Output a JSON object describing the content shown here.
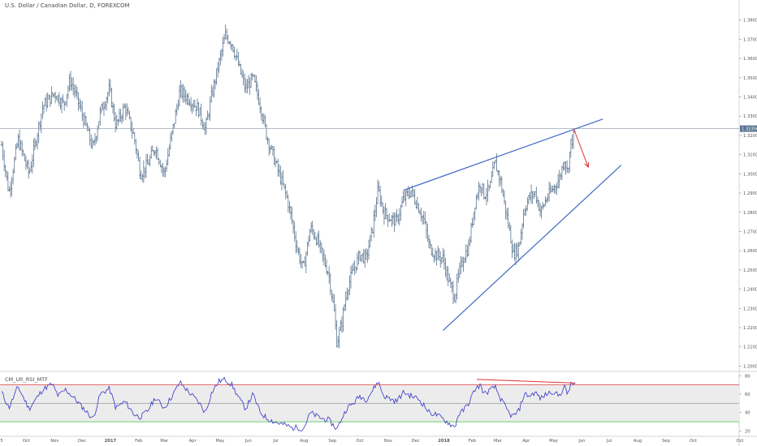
{
  "header": {
    "title": "U.S. Dollar / Canadian Dollar, D, FOREXCOM"
  },
  "indicator": {
    "title": "CM_Ult_RSI_MTF"
  },
  "chart_data": [
    {
      "type": "ohlc",
      "title": "U.S. Dollar / Canadian Dollar, D, FOREXCOM",
      "y_ticks": [
        1.2,
        1.21,
        1.22,
        1.23,
        1.24,
        1.25,
        1.26,
        1.27,
        1.28,
        1.29,
        1.3,
        1.31,
        1.32,
        1.33,
        1.34,
        1.35,
        1.36,
        1.37,
        1.38
      ],
      "y_tick_labels": [
        "1.20000",
        "1.21000",
        "1.22000",
        "1.23000",
        "1.24000",
        "1.25000",
        "1.26000",
        "1.27000",
        "1.28000",
        "1.29000",
        "1.30000",
        "1.31000",
        "1.32000",
        "1.33000",
        "1.34000",
        "1.35000",
        "1.36000",
        "1.37000",
        "1.38000"
      ],
      "ylim": [
        1.1985,
        1.3845
      ],
      "current_price_label": "1.32350",
      "current_price": 1.3235,
      "x_ticks": [
        {
          "label": "5",
          "t": 0
        },
        {
          "label": "Oct",
          "t": 27
        },
        {
          "label": "Nov",
          "t": 58
        },
        {
          "label": "Dec",
          "t": 88
        },
        {
          "label": "2017",
          "t": 119
        },
        {
          "label": "Feb",
          "t": 150
        },
        {
          "label": "Mar",
          "t": 178
        },
        {
          "label": "Apr",
          "t": 209
        },
        {
          "label": "May",
          "t": 239
        },
        {
          "label": "Jun",
          "t": 270
        },
        {
          "label": "Jul",
          "t": 300
        },
        {
          "label": "Aug",
          "t": 331
        },
        {
          "label": "Sep",
          "t": 362
        },
        {
          "label": "Oct",
          "t": 392
        },
        {
          "label": "Nov",
          "t": 423
        },
        {
          "label": "Dec",
          "t": 453
        },
        {
          "label": "2018",
          "t": 484
        },
        {
          "label": "Feb",
          "t": 515
        },
        {
          "label": "Mar",
          "t": 543
        },
        {
          "label": "Apr",
          "t": 574
        },
        {
          "label": "May",
          "t": 604
        },
        {
          "label": "Jun",
          "t": 635
        },
        {
          "label": "Jul",
          "t": 665
        },
        {
          "label": "Aug",
          "t": 696
        },
        {
          "label": "Sep",
          "t": 727
        },
        {
          "label": "Oct",
          "t": 757
        },
        {
          "label": "Oct",
          "t": 808
        }
      ],
      "price_anchors": [
        [
          0,
          1.315
        ],
        [
          8,
          1.29
        ],
        [
          18,
          1.318
        ],
        [
          30,
          1.3
        ],
        [
          45,
          1.335
        ],
        [
          58,
          1.342
        ],
        [
          68,
          1.336
        ],
        [
          75,
          1.349
        ],
        [
          82,
          1.34
        ],
        [
          90,
          1.328
        ],
        [
          100,
          1.313
        ],
        [
          108,
          1.332
        ],
        [
          118,
          1.344
        ],
        [
          125,
          1.325
        ],
        [
          135,
          1.335
        ],
        [
          145,
          1.319
        ],
        [
          152,
          1.3
        ],
        [
          160,
          1.305
        ],
        [
          168,
          1.314
        ],
        [
          178,
          1.3
        ],
        [
          188,
          1.325
        ],
        [
          195,
          1.343
        ],
        [
          205,
          1.339
        ],
        [
          215,
          1.334
        ],
        [
          223,
          1.323
        ],
        [
          230,
          1.341
        ],
        [
          238,
          1.358
        ],
        [
          245,
          1.372
        ],
        [
          252,
          1.368
        ],
        [
          260,
          1.355
        ],
        [
          267,
          1.344
        ],
        [
          275,
          1.35
        ],
        [
          283,
          1.336
        ],
        [
          290,
          1.32
        ],
        [
          298,
          1.308
        ],
        [
          305,
          1.298
        ],
        [
          312,
          1.288
        ],
        [
          318,
          1.275
        ],
        [
          323,
          1.262
        ],
        [
          330,
          1.25
        ],
        [
          338,
          1.272
        ],
        [
          345,
          1.266
        ],
        [
          352,
          1.256
        ],
        [
          358,
          1.248
        ],
        [
          364,
          1.228
        ],
        [
          367,
          1.212
        ],
        [
          372,
          1.222
        ],
        [
          378,
          1.24
        ],
        [
          385,
          1.25
        ],
        [
          392,
          1.258
        ],
        [
          399,
          1.256
        ],
        [
          406,
          1.272
        ],
        [
          412,
          1.292
        ],
        [
          418,
          1.28
        ],
        [
          425,
          1.277
        ],
        [
          432,
          1.275
        ],
        [
          440,
          1.287
        ],
        [
          448,
          1.291
        ],
        [
          456,
          1.283
        ],
        [
          462,
          1.276
        ],
        [
          468,
          1.262
        ],
        [
          475,
          1.258
        ],
        [
          483,
          1.256
        ],
        [
          490,
          1.243
        ],
        [
          496,
          1.236
        ],
        [
          500,
          1.247
        ],
        [
          505,
          1.256
        ],
        [
          511,
          1.262
        ],
        [
          518,
          1.285
        ],
        [
          524,
          1.296
        ],
        [
          528,
          1.289
        ],
        [
          534,
          1.292
        ],
        [
          540,
          1.306
        ],
        [
          546,
          1.296
        ],
        [
          552,
          1.28
        ],
        [
          556,
          1.27
        ],
        [
          560,
          1.258
        ],
        [
          566,
          1.262
        ],
        [
          572,
          1.282
        ],
        [
          578,
          1.288
        ],
        [
          584,
          1.29
        ],
        [
          590,
          1.28
        ],
        [
          596,
          1.287
        ],
        [
          603,
          1.292
        ],
        [
          610,
          1.297
        ],
        [
          616,
          1.308
        ],
        [
          619,
          1.301
        ],
        [
          623,
          1.316
        ],
        [
          628,
          1.322
        ]
      ],
      "annotations": {
        "upper_trendline": [
          [
            440,
            1.2915
          ],
          [
            658,
            1.3285
          ]
        ],
        "lower_trendline": [
          [
            483,
            1.2185
          ],
          [
            678,
            1.3045
          ]
        ],
        "arrow": [
          [
            626,
            1.3235
          ],
          [
            642,
            1.3035
          ]
        ]
      }
    },
    {
      "type": "line",
      "title": "CM_Ult_RSI_MTF",
      "y_ticks": [
        20,
        40,
        60,
        80
      ],
      "y_tick_labels": [
        "20",
        "40",
        "60",
        "80"
      ],
      "ylim": [
        16,
        82
      ],
      "levels": {
        "upper": 70,
        "middle": 50,
        "lower": 30
      },
      "rsi_anchors": [
        [
          0,
          62
        ],
        [
          8,
          45
        ],
        [
          18,
          68
        ],
        [
          30,
          44
        ],
        [
          45,
          65
        ],
        [
          55,
          71
        ],
        [
          62,
          58
        ],
        [
          70,
          65
        ],
        [
          80,
          55
        ],
        [
          90,
          44
        ],
        [
          100,
          33
        ],
        [
          108,
          60
        ],
        [
          118,
          66
        ],
        [
          125,
          45
        ],
        [
          135,
          52
        ],
        [
          145,
          38
        ],
        [
          152,
          35
        ],
        [
          160,
          42
        ],
        [
          168,
          56
        ],
        [
          178,
          45
        ],
        [
          188,
          60
        ],
        [
          195,
          73
        ],
        [
          205,
          62
        ],
        [
          215,
          52
        ],
        [
          223,
          40
        ],
        [
          230,
          62
        ],
        [
          238,
          74
        ],
        [
          245,
          76
        ],
        [
          252,
          70
        ],
        [
          260,
          55
        ],
        [
          267,
          44
        ],
        [
          275,
          60
        ],
        [
          283,
          40
        ],
        [
          290,
          34
        ],
        [
          298,
          30
        ],
        [
          305,
          28
        ],
        [
          312,
          26
        ],
        [
          318,
          23
        ],
        [
          323,
          24
        ],
        [
          330,
          22
        ],
        [
          338,
          40
        ],
        [
          345,
          36
        ],
        [
          352,
          33
        ],
        [
          358,
          32
        ],
        [
          364,
          25
        ],
        [
          367,
          22
        ],
        [
          372,
          33
        ],
        [
          378,
          45
        ],
        [
          385,
          50
        ],
        [
          392,
          58
        ],
        [
          399,
          54
        ],
        [
          406,
          64
        ],
        [
          412,
          74
        ],
        [
          418,
          58
        ],
        [
          425,
          55
        ],
        [
          432,
          52
        ],
        [
          440,
          62
        ],
        [
          448,
          58
        ],
        [
          456,
          55
        ],
        [
          462,
          48
        ],
        [
          468,
          40
        ],
        [
          475,
          38
        ],
        [
          483,
          33
        ],
        [
          490,
          28
        ],
        [
          496,
          24
        ],
        [
          500,
          38
        ],
        [
          505,
          42
        ],
        [
          511,
          50
        ],
        [
          518,
          65
        ],
        [
          524,
          70
        ],
        [
          528,
          60
        ],
        [
          534,
          64
        ],
        [
          540,
          68
        ],
        [
          546,
          55
        ],
        [
          552,
          45
        ],
        [
          556,
          38
        ],
        [
          560,
          36
        ],
        [
          566,
          42
        ],
        [
          572,
          60
        ],
        [
          578,
          58
        ],
        [
          584,
          62
        ],
        [
          590,
          55
        ],
        [
          596,
          60
        ],
        [
          603,
          63
        ],
        [
          610,
          58
        ],
        [
          616,
          68
        ],
        [
          619,
          60
        ],
        [
          623,
          70
        ],
        [
          628,
          72
        ]
      ],
      "annotations": {
        "divergence_line": [
          [
            520,
            76
          ],
          [
            628,
            72
          ]
        ]
      }
    }
  ],
  "colors": {
    "bars": "#5b7591",
    "trendline": "#3d68c5",
    "arrow": "#e0302f",
    "rsi_line": "#3434c8",
    "level_upper": "#e03a3a",
    "level_lower": "#3ec43e",
    "level_middle": "#9a9a9a",
    "band_fill": "#ececec",
    "price_line": "#9aa7b6",
    "price_badge": "#5b7591"
  }
}
